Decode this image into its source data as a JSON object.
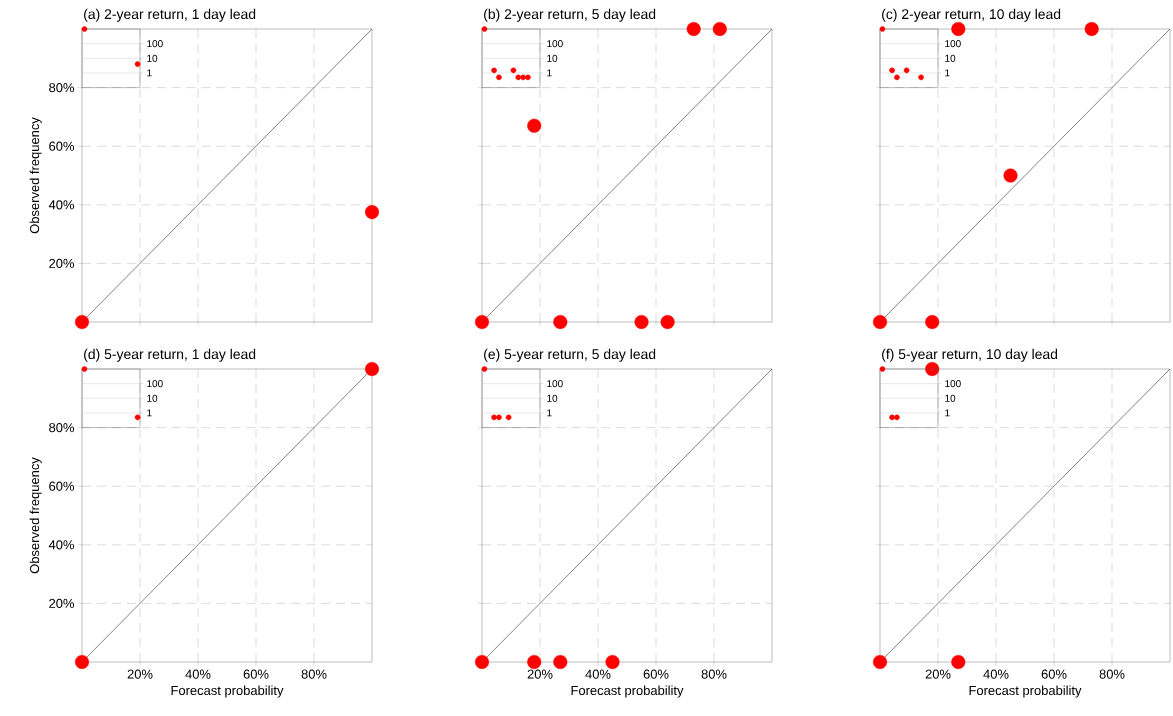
{
  "chart_data": [
    {
      "type": "scatter",
      "title": "(a) 2-year return, 1 day lead",
      "ylabel": "Observed frequency",
      "xlim": [
        0,
        1
      ],
      "ylim": [
        0,
        1
      ],
      "xticks": [
        {
          "value": 0.2,
          "label": null
        },
        {
          "value": 0.4,
          "label": null
        },
        {
          "value": 0.6,
          "label": null
        },
        {
          "value": 0.8,
          "label": null
        }
      ],
      "yticks": [
        {
          "value": 0.2,
          "label": "20%"
        },
        {
          "value": 0.4,
          "label": "40%"
        },
        {
          "value": 0.6,
          "label": "60%"
        },
        {
          "value": 0.8,
          "label": "80%"
        }
      ],
      "grid": true,
      "tick_labels": "y",
      "series": [
        {
          "type": "line",
          "color": "#000000",
          "x": [
            0,
            1
          ],
          "values": [
            0,
            1
          ]
        },
        {
          "color": "#ff0000",
          "marker": "circle",
          "x": [
            0,
            1
          ],
          "values": [
            0,
            0.375
          ]
        }
      ]
    },
    {
      "type": "scatter",
      "categories": [
        null,
        null,
        null,
        null,
        null,
        null,
        null,
        null,
        null,
        null,
        null,
        null
      ],
      "ylim": [
        0.1,
        1000
      ],
      "log": "y",
      "yticks": [
        1,
        10,
        100
      ],
      "grid": "y",
      "tick_labels": "y",
      "series": [
        {
          "color": "#ff0000",
          "marker": "circle",
          "values": [
            1000,
            null,
            null,
            null,
            null,
            null,
            null,
            null,
            null,
            null,
            null,
            4
          ]
        }
      ]
    },
    {
      "type": "scatter",
      "title": "(b) 2-year return, 5 day lead",
      "xlim": [
        0,
        1
      ],
      "ylim": [
        0,
        1
      ],
      "xticks": [
        {
          "value": 0.2,
          "label": null
        },
        {
          "value": 0.4,
          "label": null
        },
        {
          "value": 0.6,
          "label": null
        },
        {
          "value": 0.8,
          "label": null
        }
      ],
      "yticks": [
        {
          "value": 0.2,
          "label": null
        },
        {
          "value": 0.4,
          "label": null
        },
        {
          "value": 0.6,
          "label": null
        },
        {
          "value": 0.8,
          "label": null
        }
      ],
      "grid": true,
      "tick_labels": false,
      "series": [
        {
          "type": "line",
          "color": "#000000",
          "x": [
            0,
            1
          ],
          "values": [
            0,
            1
          ]
        },
        {
          "color": "#ff0000",
          "marker": "circle",
          "x": [
            0,
            0.18,
            0.27,
            0.55,
            0.64,
            0.73,
            0.82
          ],
          "values": [
            0,
            0.67,
            0,
            0,
            0,
            1,
            1
          ]
        }
      ]
    },
    {
      "type": "scatter",
      "categories": [
        null,
        null,
        null,
        null,
        null,
        null,
        null,
        null,
        null,
        null,
        null,
        null
      ],
      "ylim": [
        0.1,
        1000
      ],
      "log": "y",
      "yticks": [
        1,
        10,
        100
      ],
      "grid": "y",
      "tick_labels": "y",
      "series": [
        {
          "color": "#ff0000",
          "marker": "circle",
          "values": [
            1000,
            null,
            1.5,
            0.5,
            null,
            null,
            1.5,
            0.5,
            0.5,
            0.5,
            null,
            null
          ]
        }
      ]
    },
    {
      "type": "scatter",
      "title": "(c) 2-year return, 10 day lead",
      "xlim": [
        0,
        1
      ],
      "ylim": [
        0,
        1
      ],
      "xticks": [
        {
          "value": 0.2,
          "label": null
        },
        {
          "value": 0.4,
          "label": null
        },
        {
          "value": 0.6,
          "label": null
        },
        {
          "value": 0.8,
          "label": null
        }
      ],
      "yticks": [
        {
          "value": 0.2,
          "label": null
        },
        {
          "value": 0.4,
          "label": null
        },
        {
          "value": 0.6,
          "label": null
        },
        {
          "value": 0.8,
          "label": null
        }
      ],
      "grid": true,
      "tick_labels": false,
      "series": [
        {
          "type": "line",
          "color": "#000000",
          "x": [
            0,
            1
          ],
          "values": [
            0,
            1
          ]
        },
        {
          "color": "#ff0000",
          "marker": "circle",
          "x": [
            0,
            0.18,
            0.27,
            0.45,
            0.73
          ],
          "values": [
            0,
            0,
            1,
            0.5,
            1
          ]
        }
      ]
    },
    {
      "type": "scatter",
      "categories": [
        null,
        null,
        null,
        null,
        null,
        null,
        null,
        null,
        null,
        null,
        null,
        null
      ],
      "ylim": [
        0.1,
        1000
      ],
      "log": "y",
      "yticks": [
        1,
        10,
        100
      ],
      "grid": "y",
      "tick_labels": "y",
      "series": [
        {
          "color": "#ff0000",
          "marker": "circle",
          "values": [
            1000,
            null,
            1.5,
            0.5,
            null,
            1.5,
            null,
            null,
            0.5,
            null,
            null,
            null
          ]
        }
      ]
    },
    {
      "type": "scatter",
      "title": "(d) 5-year return, 1 day lead",
      "xlabel": "Forecast probability",
      "ylabel": "Observed frequency",
      "xlim": [
        0,
        1
      ],
      "ylim": [
        0,
        1
      ],
      "xticks": [
        {
          "value": 0.2,
          "label": "20%"
        },
        {
          "value": 0.4,
          "label": "40%"
        },
        {
          "value": 0.6,
          "label": "60%"
        },
        {
          "value": 0.8,
          "label": "80%"
        }
      ],
      "yticks": [
        {
          "value": 0.2,
          "label": "20%"
        },
        {
          "value": 0.4,
          "label": "40%"
        },
        {
          "value": 0.6,
          "label": "60%"
        },
        {
          "value": 0.8,
          "label": "80%"
        }
      ],
      "grid": true,
      "series": [
        {
          "type": "line",
          "color": "#000000",
          "x": [
            0,
            1
          ],
          "values": [
            0,
            1
          ]
        },
        {
          "color": "#ff0000",
          "marker": "circle",
          "x": [
            0,
            1
          ],
          "values": [
            0,
            1
          ]
        }
      ]
    },
    {
      "type": "scatter",
      "categories": [
        null,
        null,
        null,
        null,
        null,
        null,
        null,
        null,
        null,
        null,
        null,
        null
      ],
      "ylim": [
        0.1,
        1000
      ],
      "log": "y",
      "yticks": [
        1,
        10,
        100
      ],
      "grid": "y",
      "tick_labels": "y",
      "series": [
        {
          "color": "#ff0000",
          "marker": "circle",
          "values": [
            1000,
            null,
            null,
            null,
            null,
            null,
            null,
            null,
            null,
            null,
            null,
            0.5
          ]
        }
      ]
    },
    {
      "type": "scatter",
      "title": "(e) 5-year return, 5 day lead",
      "xlabel": "Forecast probability",
      "xlim": [
        0,
        1
      ],
      "ylim": [
        0,
        1
      ],
      "xticks": [
        {
          "value": 0.2,
          "label": "20%"
        },
        {
          "value": 0.4,
          "label": "40%"
        },
        {
          "value": 0.6,
          "label": "60%"
        },
        {
          "value": 0.8,
          "label": "80%"
        }
      ],
      "yticks": [
        {
          "value": 0.2,
          "label": null
        },
        {
          "value": 0.4,
          "label": null
        },
        {
          "value": 0.6,
          "label": null
        },
        {
          "value": 0.8,
          "label": null
        }
      ],
      "grid": true,
      "tick_labels": "x",
      "series": [
        {
          "type": "line",
          "color": "#000000",
          "x": [
            0,
            1
          ],
          "values": [
            0,
            1
          ]
        },
        {
          "color": "#ff0000",
          "marker": "circle",
          "x": [
            0,
            0.18,
            0.27,
            0.45
          ],
          "values": [
            0,
            0,
            0,
            0
          ]
        }
      ]
    },
    {
      "type": "scatter",
      "categories": [
        null,
        null,
        null,
        null,
        null,
        null,
        null,
        null,
        null,
        null,
        null,
        null
      ],
      "ylim": [
        0.1,
        1000
      ],
      "log": "y",
      "yticks": [
        1,
        10,
        100
      ],
      "grid": "y",
      "tick_labels": "y",
      "series": [
        {
          "color": "#ff0000",
          "marker": "circle",
          "values": [
            1000,
            null,
            0.5,
            0.5,
            null,
            0.5,
            null,
            null,
            null,
            null,
            null,
            null
          ]
        }
      ]
    },
    {
      "type": "scatter",
      "title": "(f) 5-year return, 10 day lead",
      "xlabel": "Forecast probability",
      "xlim": [
        0,
        1
      ],
      "ylim": [
        0,
        1
      ],
      "xticks": [
        {
          "value": 0.2,
          "label": "20%"
        },
        {
          "value": 0.4,
          "label": "40%"
        },
        {
          "value": 0.6,
          "label": "60%"
        },
        {
          "value": 0.8,
          "label": "80%"
        }
      ],
      "yticks": [
        {
          "value": 0.2,
          "label": null
        },
        {
          "value": 0.4,
          "label": null
        },
        {
          "value": 0.6,
          "label": null
        },
        {
          "value": 0.8,
          "label": null
        }
      ],
      "grid": true,
      "tick_labels": "x",
      "series": [
        {
          "type": "line",
          "color": "#000000",
          "x": [
            0,
            1
          ],
          "values": [
            0,
            1
          ]
        },
        {
          "color": "#ff0000",
          "marker": "circle",
          "x": [
            0,
            0.18,
            0.27
          ],
          "values": [
            0,
            1,
            0
          ]
        }
      ]
    },
    {
      "type": "scatter",
      "categories": [
        null,
        null,
        null,
        null,
        null,
        null,
        null,
        null,
        null,
        null,
        null,
        null
      ],
      "ylim": [
        0.1,
        1000
      ],
      "log": "y",
      "yticks": [
        1,
        10,
        100
      ],
      "grid": "y",
      "tick_labels": "y",
      "series": [
        {
          "color": "#ff0000",
          "marker": "circle",
          "values": [
            1000,
            null,
            0.5,
            0.5,
            null,
            null,
            null,
            null,
            null,
            null,
            null,
            null
          ]
        }
      ]
    }
  ]
}
